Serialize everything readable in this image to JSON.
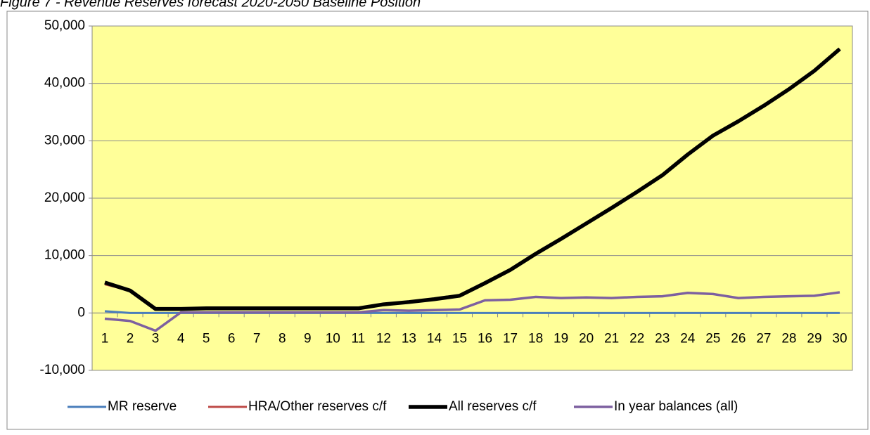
{
  "chart_data": {
    "type": "line",
    "title": "Figure 7 - Revenue Reserves forecast 2020-2050 Baseline Position",
    "categories": [
      "1",
      "2",
      "3",
      "4",
      "5",
      "6",
      "7",
      "8",
      "9",
      "10",
      "11",
      "12",
      "13",
      "14",
      "15",
      "16",
      "17",
      "18",
      "19",
      "20",
      "21",
      "22",
      "23",
      "24",
      "25",
      "26",
      "27",
      "28",
      "29",
      "30"
    ],
    "series": [
      {
        "name": "MR reserve",
        "color": "#4a7ebb",
        "values": [
          300,
          0,
          0,
          0,
          0,
          0,
          0,
          0,
          0,
          0,
          0,
          0,
          0,
          0,
          0,
          0,
          0,
          0,
          0,
          0,
          0,
          0,
          0,
          0,
          0,
          0,
          0,
          0,
          0,
          0
        ]
      },
      {
        "name": "HRA/Other reserves c/f",
        "color": "#be4b48",
        "values": [
          5000,
          3900,
          700,
          700,
          800,
          800,
          800,
          800,
          800,
          800,
          800,
          1500,
          1900,
          2400,
          3000,
          5200,
          7500,
          10300,
          12900,
          15600,
          18300,
          21100,
          24000,
          27600,
          30900,
          33400,
          36100,
          39000,
          42200,
          46000
        ]
      },
      {
        "name": "All reserves c/f",
        "color": "#000000",
        "values": [
          5300,
          3900,
          700,
          700,
          800,
          800,
          800,
          800,
          800,
          800,
          800,
          1500,
          1900,
          2400,
          3000,
          5200,
          7500,
          10300,
          12900,
          15600,
          18300,
          21100,
          24000,
          27600,
          30900,
          33400,
          36100,
          39000,
          42200,
          46000
        ]
      },
      {
        "name": "In year balances (all)",
        "color": "#7d60a0",
        "values": [
          -1000,
          -1400,
          -3100,
          100,
          100,
          100,
          100,
          100,
          100,
          100,
          100,
          500,
          400,
          500,
          600,
          2200,
          2300,
          2800,
          2600,
          2700,
          2600,
          2800,
          2900,
          3500,
          3300,
          2600,
          2800,
          2900,
          3000,
          3600
        ]
      }
    ],
    "ylim": [
      -10000,
      50000
    ],
    "yticks": [
      {
        "value": -10000,
        "label": "-10,000"
      },
      0,
      {
        "value": 10000,
        "label": "10,000"
      },
      {
        "value": 20000,
        "label": "20,000"
      },
      {
        "value": 30000,
        "label": "30,000"
      },
      {
        "value": 40000,
        "label": "40,000"
      },
      {
        "value": 50000,
        "label": "50,000"
      }
    ],
    "grid": true,
    "legend": "bottom",
    "plot_background": "#ffff99"
  }
}
